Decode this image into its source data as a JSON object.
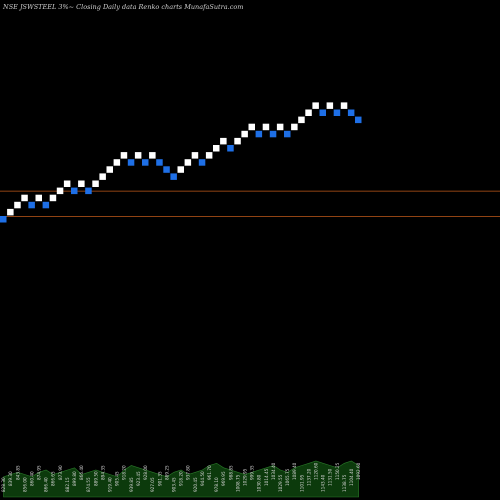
{
  "header": {
    "title": "NSE JSWSTEEL  3%~  Closing Daily data  Renko  charts MunafaSutra.com"
  },
  "colors": {
    "background": "#000000",
    "up_brick": "#ffffff",
    "down_brick": "#1e6fe6",
    "reference_line": "#c05a1a",
    "volume_area": "#0c3a0c",
    "volume_line": "#2a7a2a"
  },
  "chart_data": {
    "type": "renko",
    "brick_percent": 3,
    "bricks": [
      {
        "dir": "down",
        "level": 0
      },
      {
        "dir": "up",
        "level": 1
      },
      {
        "dir": "up",
        "level": 2
      },
      {
        "dir": "up",
        "level": 3
      },
      {
        "dir": "down",
        "level": 2
      },
      {
        "dir": "up",
        "level": 3
      },
      {
        "dir": "down",
        "level": 2
      },
      {
        "dir": "up",
        "level": 3
      },
      {
        "dir": "up",
        "level": 4
      },
      {
        "dir": "up",
        "level": 5
      },
      {
        "dir": "down",
        "level": 4
      },
      {
        "dir": "up",
        "level": 5
      },
      {
        "dir": "down",
        "level": 4
      },
      {
        "dir": "up",
        "level": 5
      },
      {
        "dir": "up",
        "level": 6
      },
      {
        "dir": "up",
        "level": 7
      },
      {
        "dir": "up",
        "level": 8
      },
      {
        "dir": "up",
        "level": 9
      },
      {
        "dir": "down",
        "level": 8
      },
      {
        "dir": "up",
        "level": 9
      },
      {
        "dir": "down",
        "level": 8
      },
      {
        "dir": "up",
        "level": 9
      },
      {
        "dir": "down",
        "level": 8
      },
      {
        "dir": "down",
        "level": 7
      },
      {
        "dir": "down",
        "level": 6
      },
      {
        "dir": "up",
        "level": 7
      },
      {
        "dir": "up",
        "level": 8
      },
      {
        "dir": "up",
        "level": 9
      },
      {
        "dir": "down",
        "level": 8
      },
      {
        "dir": "up",
        "level": 9
      },
      {
        "dir": "up",
        "level": 10
      },
      {
        "dir": "up",
        "level": 11
      },
      {
        "dir": "down",
        "level": 10
      },
      {
        "dir": "up",
        "level": 11
      },
      {
        "dir": "up",
        "level": 12
      },
      {
        "dir": "up",
        "level": 13
      },
      {
        "dir": "down",
        "level": 12
      },
      {
        "dir": "up",
        "level": 13
      },
      {
        "dir": "down",
        "level": 12
      },
      {
        "dir": "up",
        "level": 13
      },
      {
        "dir": "down",
        "level": 12
      },
      {
        "dir": "up",
        "level": 13
      },
      {
        "dir": "up",
        "level": 14
      },
      {
        "dir": "up",
        "level": 15
      },
      {
        "dir": "up",
        "level": 16
      },
      {
        "dir": "down",
        "level": 15
      },
      {
        "dir": "up",
        "level": 16
      },
      {
        "dir": "down",
        "level": 15
      },
      {
        "dir": "up",
        "level": 16
      },
      {
        "dir": "down",
        "level": 15
      },
      {
        "dir": "down",
        "level": 14
      }
    ],
    "reference_lines": [
      4,
      0
    ],
    "volume": [
      0.45,
      0.5,
      0.55,
      0.5,
      0.45,
      0.55,
      0.6,
      0.5,
      0.55,
      0.6,
      0.65,
      0.5,
      0.55,
      0.6,
      0.55,
      0.5,
      0.45,
      0.6,
      0.7,
      0.65,
      0.6,
      0.55,
      0.5,
      0.45,
      0.55,
      0.6,
      0.5,
      0.55,
      0.6,
      0.7,
      0.75,
      0.65,
      0.6,
      0.55,
      0.5,
      0.55,
      0.6,
      0.65,
      0.7,
      0.6,
      0.55,
      0.65,
      0.7,
      0.75,
      0.8,
      0.75,
      0.7,
      0.65,
      0.75,
      0.8,
      0.7
    ],
    "price_labels": [
      "828.30",
      "839.30",
      "843.85",
      "856.00",
      "860.40",
      "874.95",
      "866.40",
      "866.65",
      "873.90",
      "882.15",
      "899.80",
      "866.40",
      "874.55",
      "889.50",
      "894.35",
      "919.40",
      "905.45",
      "918.20",
      "939.85",
      "923.45",
      "928.00",
      "927.05",
      "901.35",
      "889.25",
      "903.45",
      "918.20",
      "937.80",
      "920.45",
      "944.50",
      "961.70",
      "978.10",
      "969.95",
      "988.85",
      "1008.75",
      "1029.95",
      "999.35",
      "1030.80",
      "1014.45",
      "1034.40",
      "1029.55",
      "1065.75",
      "1089.40",
      "1101.95",
      "1137.20",
      "1120.60",
      "1143.40",
      "1131.50",
      "1150.25",
      "1138.75",
      "1104.40",
      "1092.60"
    ]
  }
}
